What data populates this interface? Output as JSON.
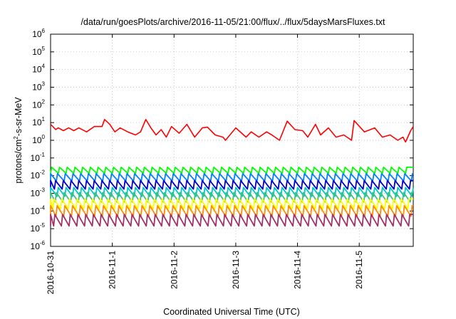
{
  "chart_data": {
    "type": "line",
    "title": "/data/run/goesPlots/archive/2016-11-05/21:00/flux/../flux/5daysMarsFluxes.txt",
    "xlabel": "Coordinated Universal Time (UTC)",
    "ylabel": "protons/cm2-s-sr-MeV",
    "ylabel_parts": {
      "pre": "protons/cm",
      "sup": "2",
      "post": "-s-sr-MeV"
    },
    "yscale": "log",
    "ylim": [
      1e-06,
      1000000.0
    ],
    "y_ticks": [
      {
        "value": 1e-06,
        "base": "10",
        "exp": "-6"
      },
      {
        "value": 1e-05,
        "base": "10",
        "exp": "-5"
      },
      {
        "value": 0.0001,
        "base": "10",
        "exp": "-4"
      },
      {
        "value": 0.001,
        "base": "10",
        "exp": "-3"
      },
      {
        "value": 0.01,
        "base": "10",
        "exp": "-2"
      },
      {
        "value": 0.1,
        "base": "10",
        "exp": "-1"
      },
      {
        "value": 1.0,
        "base": "10",
        "exp": "0"
      },
      {
        "value": 10.0,
        "base": "10",
        "exp": "1"
      },
      {
        "value": 100.0,
        "base": "10",
        "exp": "2"
      },
      {
        "value": 1000.0,
        "base": "10",
        "exp": "3"
      },
      {
        "value": 10000.0,
        "base": "10",
        "exp": "4"
      },
      {
        "value": 100000.0,
        "base": "10",
        "exp": "5"
      },
      {
        "value": 1000000.0,
        "base": "10",
        "exp": "6"
      }
    ],
    "xlim": [
      "2016-10-31T00:00",
      "2016-11-05T21:00"
    ],
    "x_ticks": [
      "2016-10-31",
      "2016-11-1",
      "2016-11-2",
      "2016-11-3",
      "2016-11-4",
      "2016-11-5"
    ],
    "grid": true,
    "series": [
      {
        "color": "#ff0000",
        "x": [
          "2016-10-31T00:00",
          "2016-10-31T02:00",
          "2016-10-31T03:00",
          "2016-10-31T05:00",
          "2016-10-31T07:00",
          "2016-10-31T09:00",
          "2016-10-31T11:00",
          "2016-10-31T14:00",
          "2016-10-31T17:00",
          "2016-10-31T20:00",
          "2016-10-31T21:00",
          "2016-10-31T23:00",
          "2016-11-01T01:00",
          "2016-11-01T03:00",
          "2016-11-01T06:00",
          "2016-11-01T09:00",
          "2016-11-01T11:00",
          "2016-11-01T13:00",
          "2016-11-01T15:00",
          "2016-11-01T17:00",
          "2016-11-01T19:00",
          "2016-11-01T21:00",
          "2016-11-01T23:00",
          "2016-11-02T02:00",
          "2016-11-02T05:00",
          "2016-11-02T08:00",
          "2016-11-02T11:00",
          "2016-11-02T13:00",
          "2016-11-02T16:00",
          "2016-11-02T19:00",
          "2016-11-02T20:00",
          "2016-11-03T00:00",
          "2016-11-03T04:00",
          "2016-11-03T06:00",
          "2016-11-03T09:00",
          "2016-11-03T12:00",
          "2016-11-03T14:00",
          "2016-11-03T17:00",
          "2016-11-03T20:00",
          "2016-11-03T23:00",
          "2016-11-04T02:00",
          "2016-11-04T04:00",
          "2016-11-04T07:00",
          "2016-11-04T09:00",
          "2016-11-04T12:00",
          "2016-11-04T15:00",
          "2016-11-04T18:00",
          "2016-11-04T21:00",
          "2016-11-04T22:00",
          "2016-11-05T02:00",
          "2016-11-05T06:00",
          "2016-11-05T09:00",
          "2016-11-05T12:00",
          "2016-11-05T15:00",
          "2016-11-05T17:00",
          "2016-11-05T18:00",
          "2016-11-05T20:00",
          "2016-11-05T21:00"
        ],
        "y": [
          8,
          4,
          5,
          3.5,
          5,
          3.5,
          5,
          3,
          6,
          6,
          15,
          8,
          3,
          5,
          3,
          2,
          3,
          15,
          5,
          2,
          4,
          1.5,
          6,
          2.5,
          8,
          1.5,
          5,
          5.5,
          2,
          1.5,
          1,
          5,
          1.5,
          3,
          1.5,
          3,
          2,
          1,
          12,
          4,
          3.5,
          1.5,
          8,
          2,
          5,
          1.5,
          2,
          1,
          13,
          3,
          5,
          1.5,
          2,
          1,
          1.5,
          0.8,
          3.5,
          6
        ]
      },
      {
        "color": "#00ff00",
        "base": 0.02,
        "amp": 2.2,
        "phase": 0
      },
      {
        "color": "#0080ff",
        "base": 0.008,
        "amp": 2.6,
        "phase": 0.25
      },
      {
        "color": "#0000c8",
        "base": 0.003,
        "amp": 3.0,
        "phase": 0.5
      },
      {
        "color": "#00c8c8",
        "base": 0.0012,
        "amp": 3.2,
        "phase": 0.15
      },
      {
        "color": "#40c080",
        "base": 0.0006,
        "amp": 3.4,
        "phase": 0.4
      },
      {
        "color": "#ffff00",
        "base": 0.00025,
        "amp": 3.6,
        "phase": 0.7
      },
      {
        "color": "#ff8c00",
        "base": 0.0001,
        "amp": 4.0,
        "phase": 0.3
      },
      {
        "color": "#a0306a",
        "base": 3e-05,
        "amp": 4.5,
        "phase": 0.6
      }
    ]
  }
}
